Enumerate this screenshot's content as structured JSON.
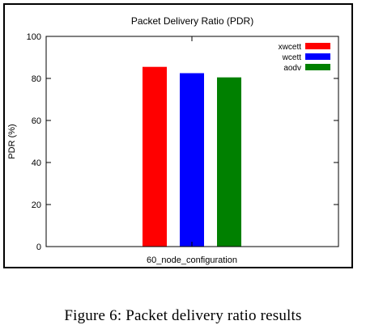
{
  "chart_data": {
    "type": "bar",
    "title": "Packet Delivery Ratio (PDR)",
    "xlabel": "",
    "ylabel": "PDR (%)",
    "categories": [
      "60_node_configuration"
    ],
    "ylim": [
      0,
      100
    ],
    "yticks": [
      0,
      20,
      40,
      60,
      80,
      100
    ],
    "grid": false,
    "legend_position": "top-right",
    "series": [
      {
        "name": "xwcett",
        "values": [
          85.5
        ],
        "color": "#ff0000"
      },
      {
        "name": "wcett",
        "values": [
          82.5
        ],
        "color": "#0000ff"
      },
      {
        "name": "aodv",
        "values": [
          80.5
        ],
        "color": "#008000"
      }
    ]
  },
  "caption": "Figure 6: Packet delivery ratio results"
}
